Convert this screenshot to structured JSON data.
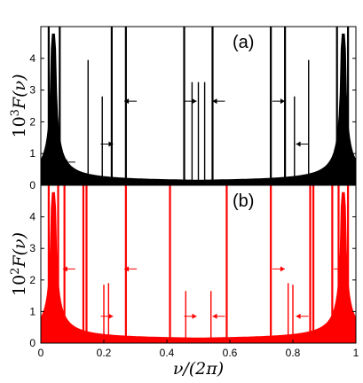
{
  "chart_data": [
    {
      "type": "line",
      "panel_label": "(a)",
      "ylabel_base": "10",
      "ylabel_exp": "3",
      "ylabel_rest": "F(ν)",
      "xlim": [
        0,
        1
      ],
      "ylim": [
        0,
        5
      ],
      "yticks": [
        "0",
        "1",
        "2",
        "3",
        "4"
      ],
      "color": "#000000",
      "peaks": [
        {
          "x": 0.025,
          "y": 5.0
        },
        {
          "x": 0.06,
          "y": 5.0
        },
        {
          "x": 0.15,
          "y": 3.95
        },
        {
          "x": 0.195,
          "y": 2.8
        },
        {
          "x": 0.225,
          "y": 5.0
        },
        {
          "x": 0.27,
          "y": 5.0
        },
        {
          "x": 0.455,
          "y": 5.0
        },
        {
          "x": 0.48,
          "y": 3.25
        },
        {
          "x": 0.5,
          "y": 3.25
        },
        {
          "x": 0.52,
          "y": 3.25
        },
        {
          "x": 0.545,
          "y": 5.0
        },
        {
          "x": 0.73,
          "y": 5.0
        },
        {
          "x": 0.775,
          "y": 5.0
        },
        {
          "x": 0.805,
          "y": 2.8
        },
        {
          "x": 0.85,
          "y": 3.95
        },
        {
          "x": 0.94,
          "y": 5.0
        },
        {
          "x": 0.975,
          "y": 5.0
        }
      ],
      "arrows": [
        {
          "x": 0.07,
          "y": 0.73,
          "dir": "left"
        },
        {
          "x": 0.19,
          "y": 1.3,
          "dir": "right"
        },
        {
          "x": 0.265,
          "y": 2.65,
          "dir": "left"
        },
        {
          "x": 0.455,
          "y": 2.65,
          "dir": "right"
        },
        {
          "x": 0.545,
          "y": 2.65,
          "dir": "left"
        },
        {
          "x": 0.735,
          "y": 2.65,
          "dir": "right"
        },
        {
          "x": 0.81,
          "y": 1.3,
          "dir": "left"
        },
        {
          "x": 0.93,
          "y": 0.73,
          "dir": "right"
        }
      ]
    },
    {
      "type": "line",
      "panel_label": "(b)",
      "ylabel_base": "10",
      "ylabel_exp": "2",
      "ylabel_rest": "F(ν)",
      "xlim": [
        0,
        1
      ],
      "ylim": [
        0,
        5
      ],
      "yticks": [
        "0",
        "1",
        "2",
        "3",
        "4"
      ],
      "xticks": [
        "0",
        "0.2",
        "0.4",
        "0.6",
        "0.8",
        "1"
      ],
      "xlabel": "ν/(2π)",
      "color": "#ff0000",
      "peaks": [
        {
          "x": 0.025,
          "y": 5.0
        },
        {
          "x": 0.055,
          "y": 5.0
        },
        {
          "x": 0.075,
          "y": 5.0
        },
        {
          "x": 0.135,
          "y": 5.0
        },
        {
          "x": 0.145,
          "y": 5.0
        },
        {
          "x": 0.2,
          "y": 1.85
        },
        {
          "x": 0.215,
          "y": 1.9
        },
        {
          "x": 0.27,
          "y": 5.0
        },
        {
          "x": 0.41,
          "y": 5.0
        },
        {
          "x": 0.46,
          "y": 1.65
        },
        {
          "x": 0.54,
          "y": 1.65
        },
        {
          "x": 0.59,
          "y": 5.0
        },
        {
          "x": 0.73,
          "y": 5.0
        },
        {
          "x": 0.785,
          "y": 1.9
        },
        {
          "x": 0.8,
          "y": 1.85
        },
        {
          "x": 0.855,
          "y": 5.0
        },
        {
          "x": 0.865,
          "y": 5.0
        },
        {
          "x": 0.925,
          "y": 5.0
        },
        {
          "x": 0.945,
          "y": 5.0
        },
        {
          "x": 0.975,
          "y": 5.0
        }
      ],
      "arrows": [
        {
          "x": 0.07,
          "y": 2.35,
          "dir": "left"
        },
        {
          "x": 0.265,
          "y": 2.35,
          "dir": "left"
        },
        {
          "x": 0.19,
          "y": 0.85,
          "dir": "right"
        },
        {
          "x": 0.455,
          "y": 0.85,
          "dir": "right"
        },
        {
          "x": 0.545,
          "y": 0.85,
          "dir": "left"
        },
        {
          "x": 0.81,
          "y": 0.85,
          "dir": "left"
        },
        {
          "x": 0.735,
          "y": 2.35,
          "dir": "right"
        },
        {
          "x": 0.93,
          "y": 2.35,
          "dir": "right"
        }
      ]
    }
  ]
}
